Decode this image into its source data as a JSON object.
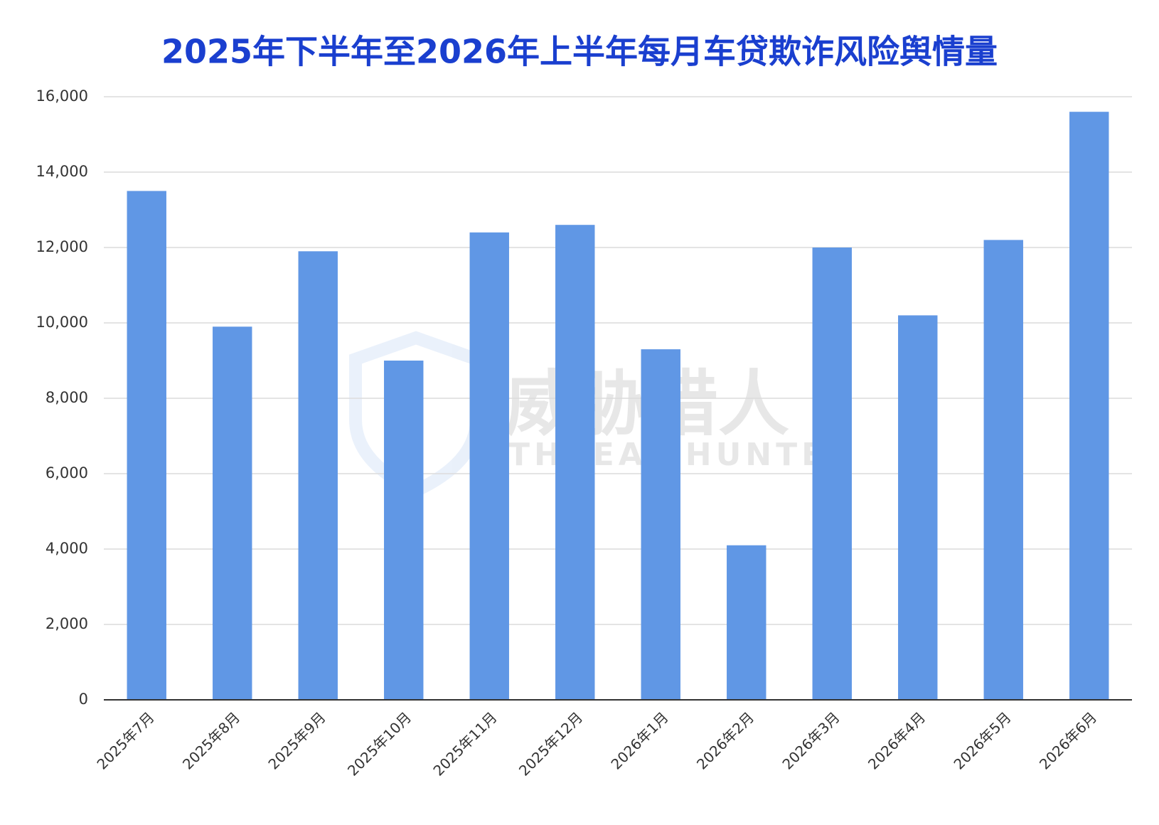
{
  "chart_data": {
    "type": "bar",
    "title": "2025年下半年至2026年上半年每月车贷欺诈风险舆情量",
    "categories": [
      "2025年7月",
      "2025年8月",
      "2025年9月",
      "2025年10月",
      "2025年11月",
      "2025年12月",
      "2026年1月",
      "2026年2月",
      "2026年3月",
      "2026年4月",
      "2026年5月",
      "2026年6月"
    ],
    "values": [
      13500,
      9900,
      11900,
      9000,
      12400,
      12600,
      9300,
      4100,
      12000,
      10200,
      12200,
      15600
    ],
    "color": "#6097e5",
    "ylim": [
      0,
      16000
    ],
    "yticks": [
      0,
      {
        "value": 2000,
        "label": "2,000"
      },
      {
        "value": 4000,
        "label": "4,000"
      },
      {
        "value": 6000,
        "label": "6,000"
      },
      {
        "value": 8000,
        "label": "8,000"
      },
      {
        "value": 10000,
        "label": "10,000"
      },
      {
        "value": 12000,
        "label": "12,000"
      },
      {
        "value": 14000,
        "label": "14,000"
      },
      {
        "value": 16000,
        "label": "16,000"
      }
    ],
    "grid": true,
    "watermark": {
      "cn": "威胁猎人",
      "en": "THREAT HUNTER"
    }
  }
}
